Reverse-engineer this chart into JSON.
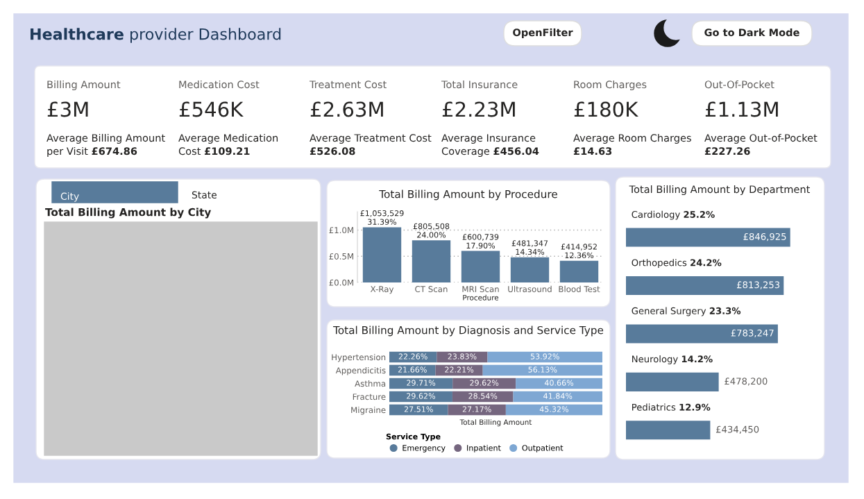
{
  "chart_data": [
    {
      "type": "other",
      "title": "Healthcare provider Dashboard",
      "annotations": [
        "OpenFilter",
        "Go to Dark Mode"
      ]
    },
    {
      "type": "other",
      "annotations": [
        "Billing Amount",
        "£3M",
        "Average Billing Amount",
        "per Visit £674.86",
        "Medication Cost",
        "£546K",
        "Average Medication",
        "Cost £109.21",
        "Treatment Cost",
        "£2.63M",
        "Average Treatment Cost",
        "£526.08",
        "Total Insurance",
        "£2.23M",
        "Average Insurance",
        "Coverage £456.04",
        "Room Charges",
        "£180K",
        "Average Room Charges",
        "£14.63",
        "Out-Of-Pocket",
        "£1.13M",
        "Average Out-of-Pocket",
        "£227.26"
      ]
    },
    {
      "type": "other",
      "title": "Total Billing Amount by City",
      "annotations": [
        "City",
        "State"
      ]
    },
    {
      "type": "bar",
      "title": "Total Billing Amount by Procedure",
      "xlabel": "Procedure",
      "categories": [
        "X-Ray",
        "CT Scan",
        "MRI Scan",
        "Ultrasound",
        "Blood Test"
      ],
      "values": [
        1053529,
        805508,
        600739,
        481347,
        414952
      ],
      "value_labels": [
        "£1,053,529\n31.39%",
        "£805,508\n24.00%",
        "£600,739\n17.90%",
        "£481,347\n14.34%",
        "£414,952\n12.36%"
      ],
      "color": "#587b9b",
      "ylim": [
        0,
        1350000
      ],
      "yticks": [
        {
          "value": 0,
          "label": "£0.0M"
        },
        {
          "value": 500000,
          "label": "£0.5M"
        },
        {
          "value": 1000000,
          "label": "£1.0M"
        }
      ],
      "grid": "y"
    },
    {
      "type": "bar",
      "title": "Total Billing Amount by Diagnosis and Service Type",
      "orientation": "horizontal",
      "stacked": true,
      "xlabel": "Total Billing Amount",
      "legend_title": "Service Type",
      "legend": "bottom",
      "tick_labels": "y",
      "categories": [
        "Hypertension",
        "Appendicitis",
        "Asthma",
        "Fracture",
        "Migraine"
      ],
      "xlim": [
        0,
        100
      ],
      "series": [
        {
          "name": "Emergency",
          "color": "#587b9b",
          "values": [
            22.26,
            21.66,
            29.71,
            29.62,
            27.51
          ],
          "value_labels": [
            "22.26%",
            "21.66%",
            "29.71%",
            "29.62%",
            "27.51%"
          ]
        },
        {
          "name": "Inpatient",
          "color": "#75667f",
          "values": [
            23.83,
            22.21,
            29.62,
            28.54,
            27.17
          ],
          "value_labels": [
            "23.83%",
            "22.21%",
            "29.62%",
            "28.54%",
            "27.17%"
          ]
        },
        {
          "name": "Outpatient",
          "color": "#7ea7d3",
          "values": [
            53.92,
            56.13,
            40.66,
            41.84,
            45.32
          ],
          "value_labels": [
            "53.92%",
            "56.13%",
            "40.66%",
            "41.84%",
            "45.32%"
          ]
        }
      ]
    },
    {
      "type": "bar",
      "title": "Total Billing Amount by Department",
      "orientation": "horizontal",
      "tick_labels": false,
      "categories": [
        "Cardiology 25.2%",
        "Orthopedics 24.2%",
        "General Surgery 23.3%",
        "Neurology 14.2%",
        "Pediatrics 12.9%"
      ],
      "values": [
        846925,
        813253,
        783247,
        478200,
        434450
      ],
      "value_labels": [
        "£846,925",
        "£813,253",
        "£783,247",
        "£478,200",
        "£434,450"
      ],
      "color": "#587b9b"
    }
  ]
}
